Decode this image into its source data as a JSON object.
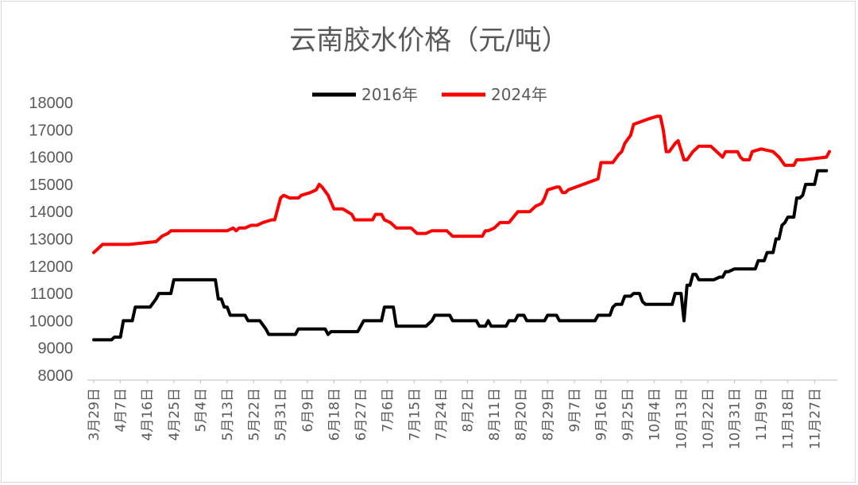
{
  "chart_data": {
    "type": "line",
    "title": "云南胶水价格（元/吨）",
    "legend_position": "top",
    "ylim": [
      8000,
      18000
    ],
    "yticks": [
      8000,
      9000,
      10000,
      11000,
      12000,
      13000,
      14000,
      15000,
      16000,
      17000,
      18000
    ],
    "x_tick_labels": [
      "3月29日",
      "4月7日",
      "4月16日",
      "4月25日",
      "5月4日",
      "5月13日",
      "5月22日",
      "5月31日",
      "6月9日",
      "6月18日",
      "6月27日",
      "7月6日",
      "7月15日",
      "7月24日",
      "8月2日",
      "8月11日",
      "8月20日",
      "8月29日",
      "9月7日",
      "9月16日",
      "9月25日",
      "10月4日",
      "10月13日",
      "10月22日",
      "10月31日",
      "11月9日",
      "11月18日",
      "11月27日"
    ],
    "x_start": "3月29日",
    "x_end": "12月2日",
    "grid": false,
    "series": [
      {
        "name": "2016年",
        "color": "#000000",
        "points": [
          [
            "3月29日",
            9300
          ],
          [
            "4月4日",
            9300
          ],
          [
            "4月5日",
            9400
          ],
          [
            "4月7日",
            9400
          ],
          [
            "4月8日",
            10000
          ],
          [
            "4月11日",
            10000
          ],
          [
            "4月12日",
            10500
          ],
          [
            "4月17日",
            10500
          ],
          [
            "4月19日",
            10800
          ],
          [
            "4月20日",
            11000
          ],
          [
            "4月24日",
            11000
          ],
          [
            "4月25日",
            11500
          ],
          [
            "5月9日",
            11500
          ],
          [
            "5月10日",
            10800
          ],
          [
            "5月11日",
            10800
          ],
          [
            "5月12日",
            10500
          ],
          [
            "5月13日",
            10500
          ],
          [
            "5月14日",
            10200
          ],
          [
            "5月19日",
            10200
          ],
          [
            "5月20日",
            10000
          ],
          [
            "5月24日",
            10000
          ],
          [
            "5月26日",
            9700
          ],
          [
            "5月27日",
            9500
          ],
          [
            "6月5日",
            9500
          ],
          [
            "6月6日",
            9700
          ],
          [
            "6月15日",
            9700
          ],
          [
            "6月16日",
            9500
          ],
          [
            "6月17日",
            9600
          ],
          [
            "6月26日",
            9600
          ],
          [
            "6月28日",
            10000
          ],
          [
            "7月4日",
            10000
          ],
          [
            "7月5日",
            10500
          ],
          [
            "7月8日",
            10500
          ],
          [
            "7月9日",
            9800
          ],
          [
            "7月19日",
            9800
          ],
          [
            "7月21日",
            10000
          ],
          [
            "7月22日",
            10200
          ],
          [
            "7月27日",
            10200
          ],
          [
            "7月28日",
            10000
          ],
          [
            "8月5日",
            10000
          ],
          [
            "8月6日",
            9800
          ],
          [
            "8月8日",
            9800
          ],
          [
            "8月9日",
            10000
          ],
          [
            "8月10日",
            9800
          ],
          [
            "8月15日",
            9800
          ],
          [
            "8月16日",
            10000
          ],
          [
            "8月18日",
            10000
          ],
          [
            "8月19日",
            10200
          ],
          [
            "8月21日",
            10200
          ],
          [
            "8月22日",
            10000
          ],
          [
            "8月28日",
            10000
          ],
          [
            "8月29日",
            10200
          ],
          [
            "9月1日",
            10200
          ],
          [
            "9月2日",
            10000
          ],
          [
            "9月14日",
            10000
          ],
          [
            "9月15日",
            10200
          ],
          [
            "9月19日",
            10200
          ],
          [
            "9月20日",
            10500
          ],
          [
            "9月21日",
            10600
          ],
          [
            "9月23日",
            10600
          ],
          [
            "9月24日",
            10900
          ],
          [
            "9月26日",
            10900
          ],
          [
            "9月27日",
            11000
          ],
          [
            "9月29日",
            11000
          ],
          [
            "9月30日",
            10700
          ],
          [
            "10月1日",
            10600
          ],
          [
            "10月10日",
            10600
          ],
          [
            "10月11日",
            11000
          ],
          [
            "10月13日",
            11000
          ],
          [
            "10月14日",
            10000
          ],
          [
            "10月15日",
            11300
          ],
          [
            "10月16日",
            11300
          ],
          [
            "10月17日",
            11700
          ],
          [
            "10月18日",
            11700
          ],
          [
            "10月19日",
            11500
          ],
          [
            "10月24日",
            11500
          ],
          [
            "10月26日",
            11600
          ],
          [
            "10月27日",
            11600
          ],
          [
            "10月28日",
            11800
          ],
          [
            "10月29日",
            11800
          ],
          [
            "10月31日",
            11900
          ],
          [
            "11月7日",
            11900
          ],
          [
            "11月8日",
            12200
          ],
          [
            "11月10日",
            12200
          ],
          [
            "11月11日",
            12500
          ],
          [
            "11月13日",
            12500
          ],
          [
            "11月14日",
            13000
          ],
          [
            "11月15日",
            13000
          ],
          [
            "11月16日",
            13500
          ],
          [
            "11月17日",
            13600
          ],
          [
            "11月18日",
            13800
          ],
          [
            "11月20日",
            13800
          ],
          [
            "11月21日",
            14500
          ],
          [
            "11月22日",
            14500
          ],
          [
            "11月23日",
            14600
          ],
          [
            "11月24日",
            15000
          ],
          [
            "11月27日",
            15000
          ],
          [
            "11月28日",
            15500
          ],
          [
            "12月1日",
            15500
          ]
        ]
      },
      {
        "name": "2024年",
        "color": "#ff0000",
        "points": [
          [
            "3月29日",
            12500
          ],
          [
            "4月1日",
            12800
          ],
          [
            "4月10日",
            12800
          ],
          [
            "4月19日",
            12900
          ],
          [
            "4月21日",
            13100
          ],
          [
            "4月23日",
            13200
          ],
          [
            "4月24日",
            13300
          ],
          [
            "5月13日",
            13300
          ],
          [
            "5月15日",
            13400
          ],
          [
            "5月16日",
            13300
          ],
          [
            "5月17日",
            13400
          ],
          [
            "5月19日",
            13400
          ],
          [
            "5月21日",
            13500
          ],
          [
            "5月23日",
            13500
          ],
          [
            "5月25日",
            13600
          ],
          [
            "5月28日",
            13700
          ],
          [
            "5月29日",
            13700
          ],
          [
            "5月31日",
            14500
          ],
          [
            "6月1日",
            14600
          ],
          [
            "6月3日",
            14500
          ],
          [
            "6月6日",
            14500
          ],
          [
            "6月7日",
            14600
          ],
          [
            "6月10日",
            14700
          ],
          [
            "6月12日",
            14800
          ],
          [
            "6月13日",
            15000
          ],
          [
            "6月14日",
            14900
          ],
          [
            "6月16日",
            14600
          ],
          [
            "6月18日",
            14100
          ],
          [
            "6月21日",
            14100
          ],
          [
            "6月24日",
            13900
          ],
          [
            "6月25日",
            13700
          ],
          [
            "7月1日",
            13700
          ],
          [
            "7月2日",
            13900
          ],
          [
            "7月4日",
            13900
          ],
          [
            "7月5日",
            13700
          ],
          [
            "7月7日",
            13600
          ],
          [
            "7月9日",
            13400
          ],
          [
            "7月14日",
            13400
          ],
          [
            "7月16日",
            13200
          ],
          [
            "7月19日",
            13200
          ],
          [
            "7月21日",
            13300
          ],
          [
            "7月26日",
            13300
          ],
          [
            "7月28日",
            13100
          ],
          [
            "8月7日",
            13100
          ],
          [
            "8月8日",
            13300
          ],
          [
            "8月9日",
            13300
          ],
          [
            "8月11日",
            13400
          ],
          [
            "8月13日",
            13600
          ],
          [
            "8月16日",
            13600
          ],
          [
            "8月19日",
            14000
          ],
          [
            "8月23日",
            14000
          ],
          [
            "8月25日",
            14200
          ],
          [
            "8月27日",
            14300
          ],
          [
            "8月28日",
            14500
          ],
          [
            "8月29日",
            14800
          ],
          [
            "9月1日",
            14900
          ],
          [
            "9月2日",
            14900
          ],
          [
            "9月3日",
            14700
          ],
          [
            "9月4日",
            14700
          ],
          [
            "9月5日",
            14800
          ],
          [
            "9月15日",
            15200
          ],
          [
            "9月16日",
            15800
          ],
          [
            "9月20日",
            15800
          ],
          [
            "9月22日",
            16100
          ],
          [
            "9月23日",
            16200
          ],
          [
            "9月24日",
            16500
          ],
          [
            "9月26日",
            16800
          ],
          [
            "9月27日",
            17200
          ],
          [
            "10月2日",
            17400
          ],
          [
            "10月5日",
            17500
          ],
          [
            "10月6日",
            17500
          ],
          [
            "10月7日",
            17000
          ],
          [
            "10月8日",
            16200
          ],
          [
            "10月9日",
            16200
          ],
          [
            "10月11日",
            16500
          ],
          [
            "10月12日",
            16600
          ],
          [
            "10月14日",
            15900
          ],
          [
            "10月15日",
            15900
          ],
          [
            "10月17日",
            16200
          ],
          [
            "10月19日",
            16400
          ],
          [
            "10月23日",
            16400
          ],
          [
            "10月24日",
            16300
          ],
          [
            "10月27日",
            16000
          ],
          [
            "10月28日",
            16200
          ],
          [
            "11月1日",
            16200
          ],
          [
            "11月2日",
            16000
          ],
          [
            "11月3日",
            15900
          ],
          [
            "11月5日",
            15900
          ],
          [
            "11月6日",
            16200
          ],
          [
            "11月9日",
            16300
          ],
          [
            "11月13日",
            16200
          ],
          [
            "11月15日",
            16000
          ],
          [
            "11月17日",
            15700
          ],
          [
            "11月20日",
            15700
          ],
          [
            "11月21日",
            15900
          ],
          [
            "11月23日",
            15900
          ],
          [
            "12月1日",
            16000
          ],
          [
            "12月2日",
            16200
          ]
        ]
      }
    ]
  }
}
